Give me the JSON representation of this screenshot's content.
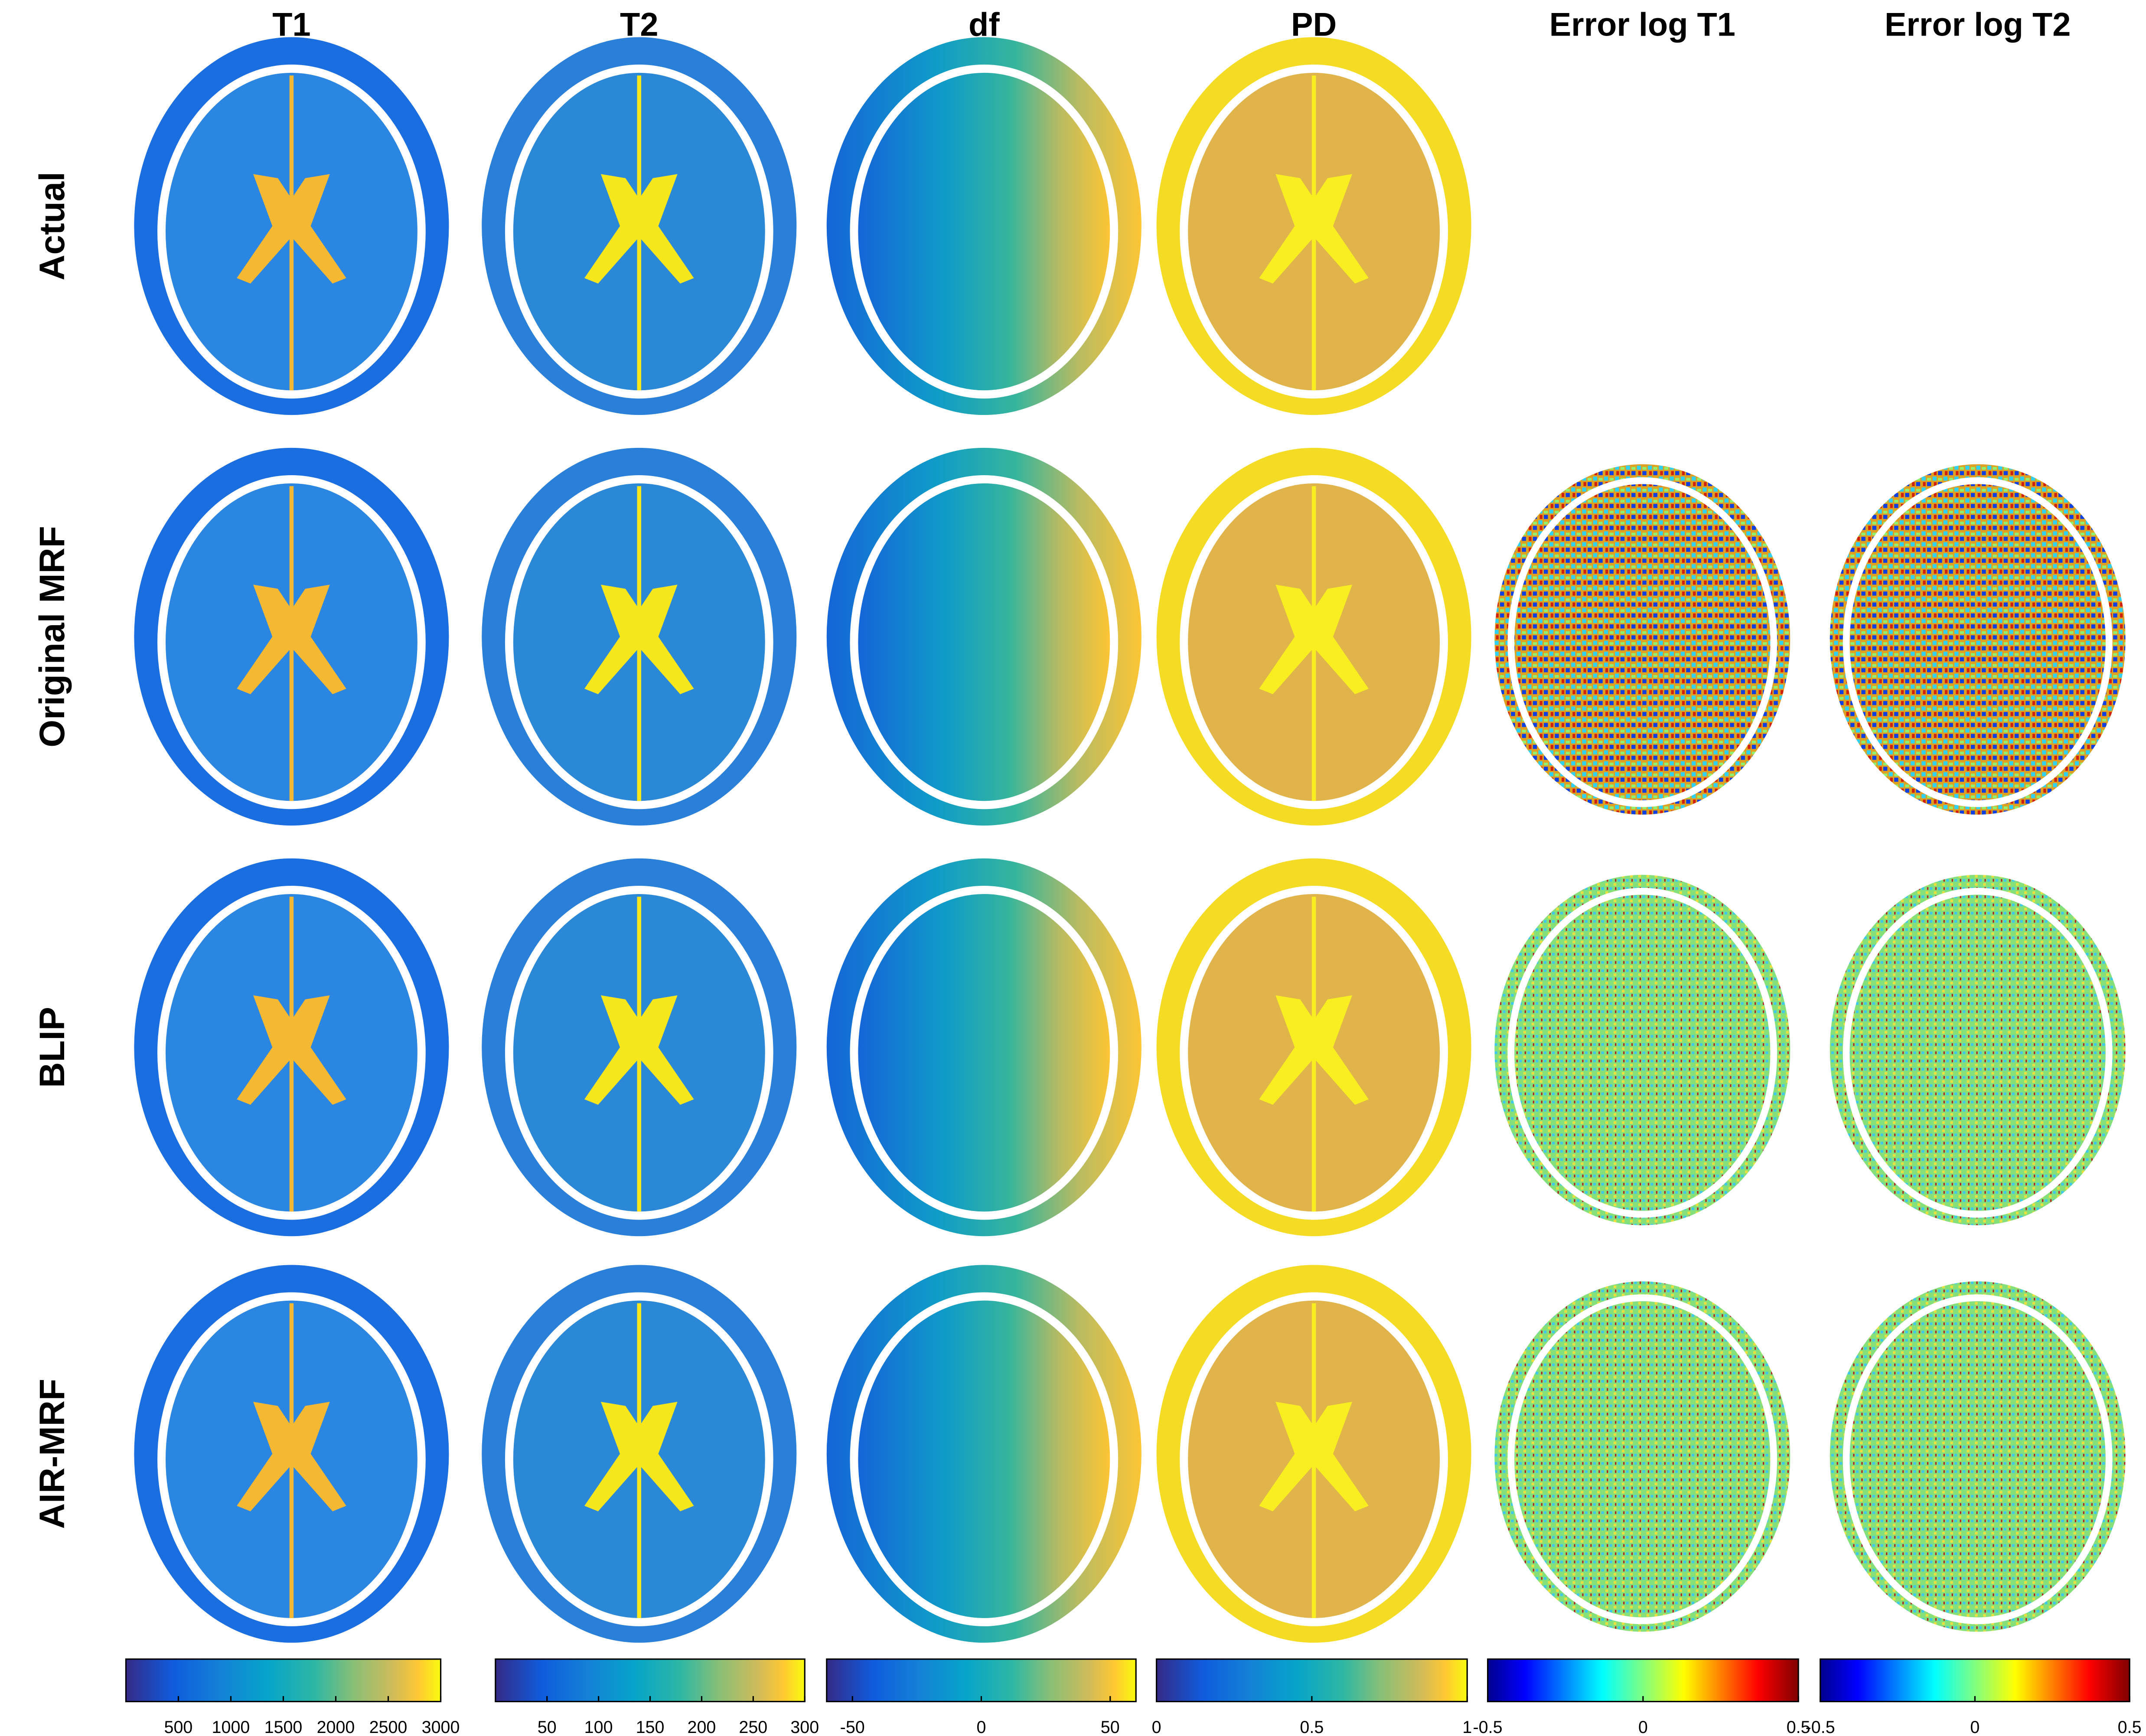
{
  "columns": [
    "T1",
    "T2",
    "df",
    "PD",
    "Error log T1",
    "Error log T2"
  ],
  "rows": [
    "Actual",
    "Original MRF",
    "BLIP",
    "AIR-MRF"
  ],
  "colorbars": [
    {
      "colormap": "parula",
      "range": [
        0,
        3000
      ],
      "ticks": [
        500,
        1000,
        1500,
        2000,
        2500,
        3000
      ]
    },
    {
      "colormap": "parula",
      "range": [
        0,
        300
      ],
      "ticks": [
        50,
        100,
        150,
        200,
        250,
        300
      ]
    },
    {
      "colormap": "parula",
      "range": [
        -60,
        60
      ],
      "ticks": [
        -50,
        0,
        50
      ]
    },
    {
      "colormap": "parula",
      "range": [
        0,
        1
      ],
      "ticks": [
        0,
        0.5,
        1
      ]
    },
    {
      "colormap": "jet",
      "range": [
        -0.5,
        0.5
      ],
      "ticks": [
        -0.5,
        0,
        0.5
      ]
    },
    {
      "colormap": "jet",
      "range": [
        -0.5,
        0.5
      ],
      "ticks": [
        -0.5,
        0,
        0.5
      ]
    }
  ]
}
